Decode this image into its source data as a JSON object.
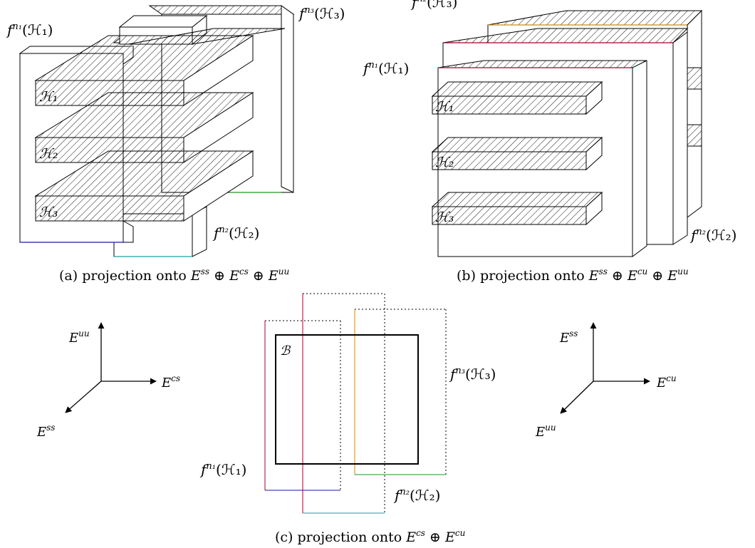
{
  "labels": {
    "fn1": "f",
    "fn1_sup": "n₁",
    "H1_paren": "(ℋ₁)",
    "fn2": "f",
    "fn2_sup": "n₂",
    "H2_paren": "(ℋ₂)",
    "fn3": "f",
    "fn3_sup": "n₃",
    "H3_paren": "(ℋ₃)",
    "H1": "ℋ₁",
    "H2": "ℋ₂",
    "H3": "ℋ₃",
    "B": "ℬ"
  },
  "captions": {
    "a_prefix": "(a)  projection onto ",
    "b_prefix": "(b)  projection onto ",
    "c_prefix": "(c)  projection onto ",
    "oplus": "⊕",
    "E": "E"
  },
  "axes": {
    "left": {
      "up": "uu",
      "right": "cs",
      "diag": "ss"
    },
    "right": {
      "up": "ss",
      "right": "cu",
      "diag": "uu"
    }
  },
  "colors": {
    "red": "#a0002a",
    "blue": "#1a1aa0",
    "cyan": "#1a9fa0",
    "green": "#1a9a1a",
    "orange": "#c88a1a",
    "black": "#000000"
  }
}
